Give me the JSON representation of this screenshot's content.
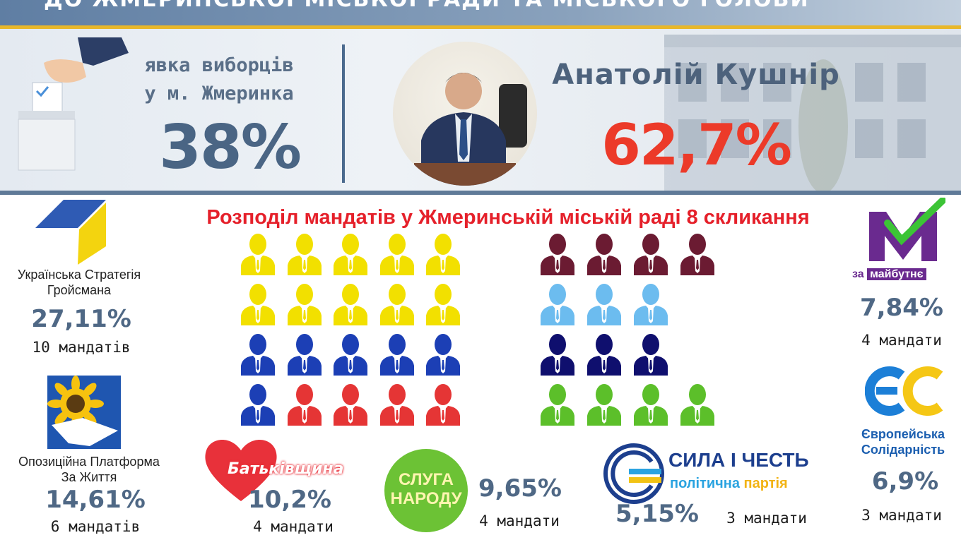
{
  "header": {
    "title": "ДО ЖМЕРИНСЬКОЇ МІСЬКОЇ РАДИ ТА МІСЬКОГО ГОЛОВИ"
  },
  "turnout": {
    "label_line1": "явка виборців",
    "label_line2": "у м. Жмеринка",
    "value": "38%",
    "value_percent": 38
  },
  "mayor": {
    "name": "Анатолій Кушнір",
    "percent": "62,7%"
  },
  "seats_section": {
    "title": "Розподіл мандатів у Жмеринській міській раді 8 скликання"
  },
  "parties": [
    {
      "id": "ukr-strategy",
      "name_line1": "Українська Стратегія",
      "name_line2": "Гройсмана",
      "percent": "27,11%",
      "seats_label": "10 мандатів",
      "seats": 10,
      "color": "#f2e000"
    },
    {
      "id": "opzzh",
      "name_line1": "Опозиційна Платформа",
      "name_line2": "За Життя",
      "percent": "14,61%",
      "seats_label": "6 мандатів",
      "seats": 6,
      "color": "#1c3fb5"
    },
    {
      "id": "batkivshchyna",
      "logo_text": "Батьківщина",
      "percent": "10,2%",
      "seats_label": "4 мандати",
      "seats": 4,
      "color": "#e53535"
    },
    {
      "id": "sluha-narodu",
      "logo_line1": "СЛУГА",
      "logo_line2": "НАРОДУ",
      "percent": "9,65%",
      "seats_label": "4 мандати",
      "seats": 4,
      "color": "#5cbf2a"
    },
    {
      "id": "syla-i-chest",
      "logo_line1": "СИЛА І ЧЕСТЬ",
      "logo_line2a": "політична",
      "logo_line2b": "партія",
      "percent": "5,15%",
      "seats_label": "3 мандати",
      "seats": 3,
      "color": "#0f0f6e"
    },
    {
      "id": "za-maibutnie",
      "logo_za": "за",
      "logo_word": "майбутнє",
      "percent": "7,84%",
      "seats_label": "4 мандати",
      "seats": 4,
      "color": "#6b1b32"
    },
    {
      "id": "yevro-solidarnist",
      "name_line1": "Європейська",
      "name_line2": "Солідарність",
      "percent": "6,9%",
      "seats_label": "3 мандати",
      "seats": 3,
      "color": "#6cbcef"
    }
  ],
  "seat_grid_left": [
    [
      "#f2e000",
      "#f2e000",
      "#f2e000",
      "#f2e000",
      "#f2e000"
    ],
    [
      "#f2e000",
      "#f2e000",
      "#f2e000",
      "#f2e000",
      "#f2e000"
    ],
    [
      "#1c3fb5",
      "#1c3fb5",
      "#1c3fb5",
      "#1c3fb5",
      "#1c3fb5"
    ],
    [
      "#1c3fb5",
      "#e53535",
      "#e53535",
      "#e53535",
      "#e53535"
    ]
  ],
  "seat_grid_right": [
    [
      "#6b1b32",
      "#6b1b32",
      "#6b1b32",
      "#6b1b32"
    ],
    [
      "#6cbcef",
      "#6cbcef",
      "#6cbcef"
    ],
    [
      "#0f0f6e",
      "#0f0f6e",
      "#0f0f6e"
    ],
    [
      "#5cbf2a",
      "#5cbf2a",
      "#5cbf2a",
      "#5cbf2a"
    ]
  ]
}
